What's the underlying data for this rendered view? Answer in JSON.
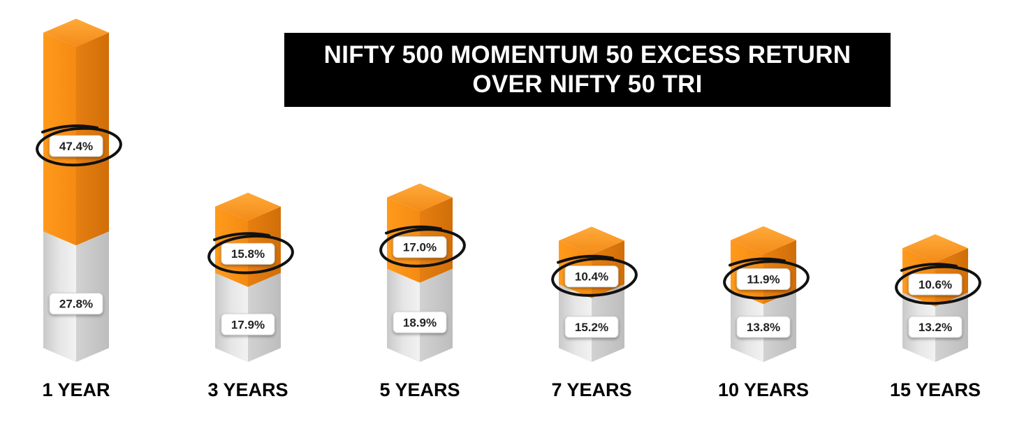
{
  "chart_data": {
    "type": "bar",
    "stacked": true,
    "title_lines": [
      "NIFTY 500 MOMENTUM 50 EXCESS RETURN",
      "OVER NIFTY 50 TRI"
    ],
    "categories": [
      "1 YEAR",
      "3 YEARS",
      "5 YEARS",
      "7 YEARS",
      "10 YEARS",
      "15 YEARS"
    ],
    "series": [
      {
        "values": [
          27.8,
          17.9,
          18.9,
          15.2,
          13.8,
          13.2
        ],
        "labels": [
          "27.8%",
          "17.9%",
          "18.9%",
          "15.2%",
          "13.8%",
          "13.2%"
        ],
        "color": "#d9d9d9"
      },
      {
        "values": [
          47.4,
          15.8,
          17.0,
          10.4,
          11.9,
          10.6
        ],
        "labels": [
          "47.4%",
          "15.8%",
          "17.0%",
          "10.4%",
          "11.9%",
          "10.6%"
        ],
        "color": "#f28a1a",
        "circled": true
      }
    ],
    "xlabel": "",
    "ylabel": "",
    "grid": false,
    "legend": "none"
  }
}
